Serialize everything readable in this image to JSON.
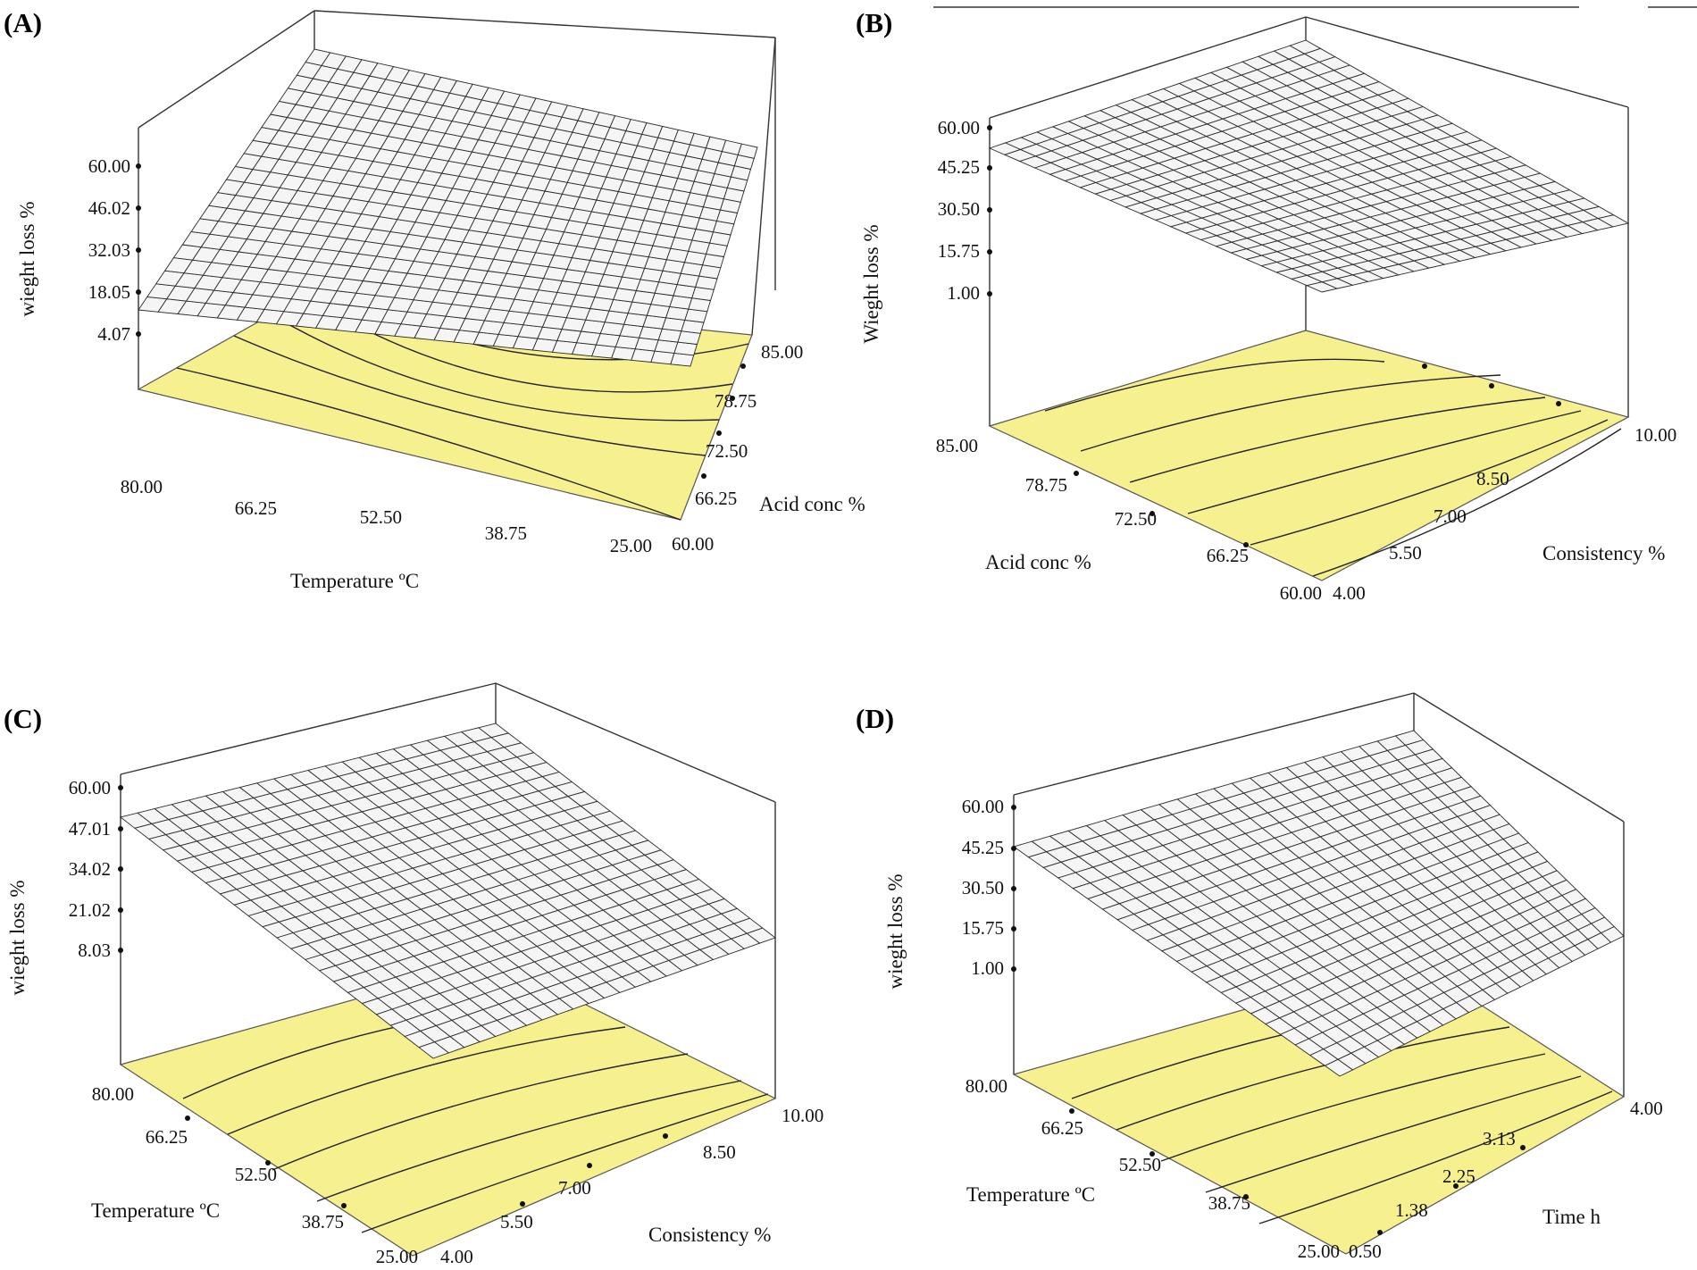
{
  "colors": {
    "floor": "#f7f08f",
    "surface": "#f5f5f5",
    "grid": "#2a2a2a"
  },
  "chart_data": [
    {
      "type": "surface3d",
      "panel": "(A)",
      "xlabel": "Temperature ºC",
      "ylabel": "Acid conc %",
      "zlabel": "wieght loss %",
      "x_ticks": [
        "80.00",
        "66.25",
        "52.50",
        "38.75",
        "25.00"
      ],
      "y_ticks": [
        "60.00",
        "66.25",
        "72.50",
        "78.75",
        "85.00"
      ],
      "z_ticks": [
        "60.00",
        "46.02",
        "32.03",
        "18.05",
        "4.07"
      ],
      "xlim": [
        25,
        80
      ],
      "ylim": [
        60,
        85
      ],
      "zlim": [
        4.07,
        60
      ]
    },
    {
      "type": "surface3d",
      "panel": "(B)",
      "xlabel": "Acid conc %",
      "ylabel": "Consistency %",
      "zlabel": "Wieght loss %",
      "x_ticks": [
        "85.00",
        "78.75",
        "72.50",
        "66.25",
        "60.00"
      ],
      "y_ticks": [
        "4.00",
        "5.50",
        "7.00",
        "8.50",
        "10.00"
      ],
      "z_ticks": [
        "60.00",
        "45.25",
        "30.50",
        "15.75",
        "1.00"
      ],
      "xlim": [
        60,
        85
      ],
      "ylim": [
        4,
        10
      ],
      "zlim": [
        1,
        60
      ]
    },
    {
      "type": "surface3d",
      "panel": "(C)",
      "xlabel": "Temperature ºC",
      "ylabel": "Consistency %",
      "zlabel": "wieght loss %",
      "x_ticks": [
        "80.00",
        "66.25",
        "52.50",
        "38.75",
        "25.00"
      ],
      "y_ticks": [
        "4.00",
        "5.50",
        "7.00",
        "8.50",
        "10.00"
      ],
      "z_ticks": [
        "60.00",
        "47.01",
        "34.02",
        "21.02",
        "8.03"
      ],
      "xlim": [
        25,
        80
      ],
      "ylim": [
        4,
        10
      ],
      "zlim": [
        8.03,
        60
      ]
    },
    {
      "type": "surface3d",
      "panel": "(D)",
      "xlabel": "Temperature ºC",
      "ylabel": "Time h",
      "zlabel": "wieght loss %",
      "x_ticks": [
        "80.00",
        "66.25",
        "52.50",
        "38.75",
        "25.00"
      ],
      "y_ticks": [
        "0.50",
        "1.38",
        "2.25",
        "3.13",
        "4.00"
      ],
      "z_ticks": [
        "60.00",
        "45.25",
        "30.50",
        "15.75",
        "1.00"
      ],
      "xlim": [
        25,
        80
      ],
      "ylim": [
        0.5,
        4
      ],
      "zlim": [
        1,
        60
      ]
    }
  ]
}
